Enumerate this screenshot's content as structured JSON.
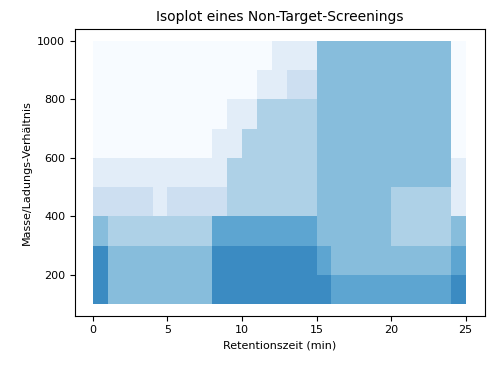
{
  "chart_data": {
    "type": "heatmap",
    "title": "Isoplot eines Non-Target-Screenings",
    "x_label": "Retentionszeit (min)",
    "y_label": "Masse/Ladungs-Verhältnis",
    "color": "Blues",
    "xlim": [
      -1.2,
      26.3
    ],
    "xticks": [
      0,
      5,
      10,
      15,
      20,
      25
    ],
    "ylim": [
      60,
      1040
    ],
    "yticks": [
      200,
      400,
      600,
      800,
      1000
    ],
    "grid": false,
    "x_edges": [
      0,
      1,
      2,
      3,
      4,
      5,
      6,
      7,
      8,
      9,
      10,
      11,
      12,
      13,
      14,
      15,
      16,
      17,
      18,
      19,
      20,
      21,
      22,
      23,
      24,
      25
    ],
    "y_edges": [
      100,
      200,
      300,
      400,
      500,
      600,
      700,
      800,
      900,
      1000
    ],
    "cells": [
      [
        6,
        4,
        4,
        4,
        4,
        4,
        4,
        4,
        6,
        6,
        6,
        6,
        6,
        6,
        6,
        6,
        5,
        5,
        5,
        5,
        5,
        5,
        5,
        5,
        6
      ],
      [
        6,
        4,
        4,
        4,
        4,
        4,
        4,
        4,
        6,
        6,
        6,
        6,
        6,
        6,
        6,
        5,
        4,
        4,
        4,
        4,
        4,
        4,
        4,
        4,
        5
      ],
      [
        4,
        3,
        3,
        3,
        3,
        3,
        3,
        3,
        5,
        5,
        5,
        5,
        5,
        5,
        5,
        4,
        4,
        4,
        4,
        4,
        3,
        3,
        3,
        3,
        4
      ],
      [
        2,
        2,
        2,
        2,
        1,
        2,
        2,
        2,
        2,
        3,
        3,
        3,
        3,
        3,
        3,
        4,
        4,
        4,
        4,
        4,
        3,
        3,
        3,
        3,
        1
      ],
      [
        1,
        1,
        1,
        1,
        1,
        1,
        1,
        1,
        1,
        3,
        3,
        3,
        3,
        3,
        3,
        4,
        4,
        4,
        4,
        4,
        4,
        4,
        4,
        4,
        1
      ],
      [
        0,
        0,
        0,
        0,
        0,
        0,
        0,
        0,
        1,
        1,
        3,
        3,
        3,
        3,
        3,
        4,
        4,
        4,
        4,
        4,
        4,
        4,
        4,
        4,
        0
      ],
      [
        0,
        0,
        0,
        0,
        0,
        0,
        0,
        0,
        0,
        1,
        1,
        3,
        3,
        3,
        3,
        4,
        4,
        4,
        4,
        4,
        4,
        4,
        4,
        4,
        0
      ],
      [
        0,
        0,
        0,
        0,
        0,
        0,
        0,
        0,
        0,
        0,
        0,
        1,
        1,
        2,
        2,
        4,
        4,
        4,
        4,
        4,
        4,
        4,
        4,
        4,
        0
      ],
      [
        0,
        0,
        0,
        0,
        0,
        0,
        0,
        0,
        0,
        0,
        0,
        0,
        1,
        1,
        1,
        4,
        4,
        4,
        4,
        4,
        4,
        4,
        4,
        4,
        0
      ]
    ]
  }
}
